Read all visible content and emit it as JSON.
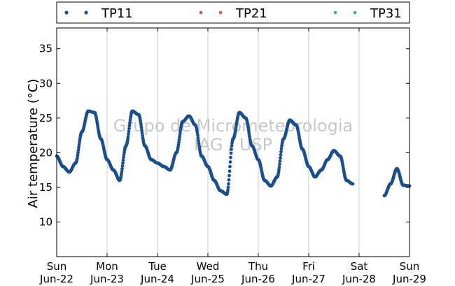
{
  "chart_data": {
    "type": "scatter",
    "title": "",
    "xlabel": "",
    "ylabel": "Air temperature (°C)",
    "ylim": [
      5,
      38
    ],
    "xlim": [
      "2014-06-22 00:00",
      "2014-06-29 00:00"
    ],
    "yticks": [
      10,
      15,
      20,
      25,
      30,
      35
    ],
    "xticks": [
      {
        "day": "Sun",
        "date": "Jun-22"
      },
      {
        "day": "Mon",
        "date": "Jun-23"
      },
      {
        "day": "Tue",
        "date": "Jun-24"
      },
      {
        "day": "Wed",
        "date": "Jun-25"
      },
      {
        "day": "Thu",
        "date": "Jun-26"
      },
      {
        "day": "Fri",
        "date": "Jun-27"
      },
      {
        "day": "Sat",
        "date": "Jun-28"
      },
      {
        "day": "Sun",
        "date": "Jun-29"
      }
    ],
    "grid": "vertical",
    "legend_position": "top",
    "colors": {
      "TP11": "#1a4e8c",
      "TP21": "#d9534f",
      "TP31": "#3cb371",
      "grid": "#c8c8c8"
    },
    "watermark": [
      "Grupo de Micrometeorologia",
      "IAG / USP"
    ],
    "series": [
      {
        "name": "TP11",
        "x": [
          "2014-06-22 00:00",
          "2014-06-22 03:00",
          "2014-06-22 06:00",
          "2014-06-22 09:00",
          "2014-06-22 12:00",
          "2014-06-22 15:00",
          "2014-06-22 18:00",
          "2014-06-22 21:00",
          "2014-06-23 00:00",
          "2014-06-23 03:00",
          "2014-06-23 06:00",
          "2014-06-23 09:00",
          "2014-06-23 12:00",
          "2014-06-23 15:00",
          "2014-06-23 18:00",
          "2014-06-23 21:00",
          "2014-06-24 00:00",
          "2014-06-24 03:00",
          "2014-06-24 06:00",
          "2014-06-24 09:00",
          "2014-06-24 12:00",
          "2014-06-24 15:00",
          "2014-06-24 18:00",
          "2014-06-24 21:00",
          "2014-06-25 00:00",
          "2014-06-25 03:00",
          "2014-06-25 06:00",
          "2014-06-25 09:00",
          "2014-06-25 12:00",
          "2014-06-25 15:00",
          "2014-06-25 18:00",
          "2014-06-25 21:00",
          "2014-06-26 00:00",
          "2014-06-26 03:00",
          "2014-06-26 06:00",
          "2014-06-26 09:00",
          "2014-06-26 12:00",
          "2014-06-26 15:00",
          "2014-06-26 18:00",
          "2014-06-26 21:00",
          "2014-06-27 00:00",
          "2014-06-27 03:00",
          "2014-06-27 06:00",
          "2014-06-27 09:00",
          "2014-06-27 12:00",
          "2014-06-27 15:00",
          "2014-06-27 18:00",
          "2014-06-27 21:00",
          "2014-06-28 12:00",
          "2014-06-28 15:00",
          "2014-06-28 18:00",
          "2014-06-28 21:00",
          "2014-06-29 00:00"
        ],
        "y": [
          19.5,
          18.0,
          17.2,
          18.5,
          23.0,
          26.0,
          25.8,
          22.0,
          19.0,
          17.5,
          16.0,
          21.0,
          26.0,
          25.5,
          21.0,
          19.0,
          18.5,
          18.0,
          17.5,
          20.0,
          24.5,
          25.3,
          24.0,
          19.5,
          18.0,
          16.0,
          14.5,
          14.0,
          22.0,
          25.8,
          25.0,
          21.0,
          19.0,
          16.0,
          15.2,
          16.5,
          22.0,
          24.7,
          24.0,
          20.5,
          18.0,
          16.5,
          17.5,
          19.0,
          20.3,
          19.5,
          16.0,
          15.5,
          13.8,
          15.5,
          17.7,
          15.3,
          15.2
        ]
      },
      {
        "name": "TP21",
        "x": [],
        "y": []
      },
      {
        "name": "TP31",
        "x": [],
        "y": []
      }
    ]
  }
}
